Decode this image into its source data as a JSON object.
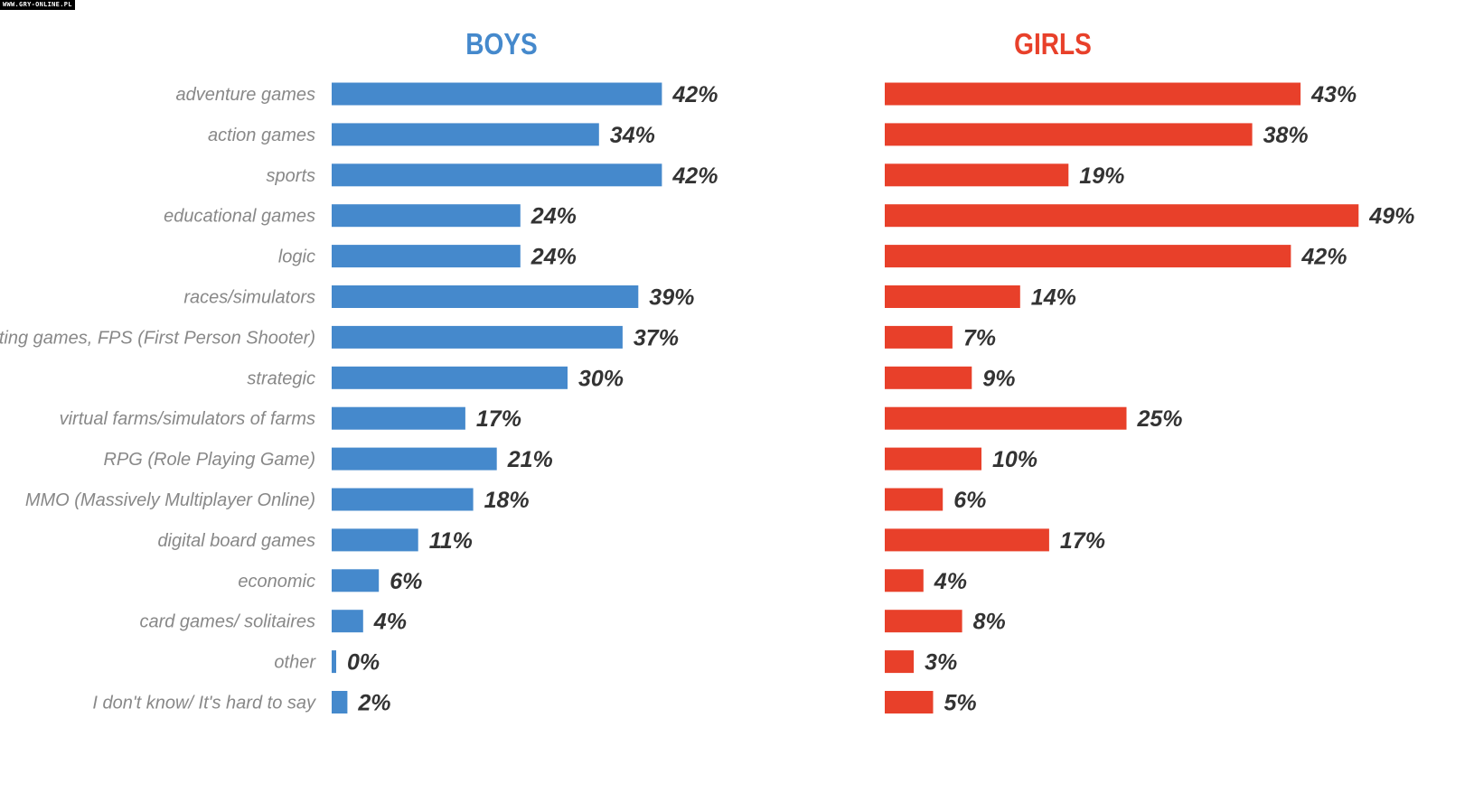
{
  "watermark": "WWW.GRY-ONLINE.PL",
  "colors": {
    "boys": "#4589cc",
    "girls": "#e8402a",
    "label": "#888888",
    "value": "#333333"
  },
  "chart_data": {
    "type": "bar",
    "orientation": "horizontal",
    "title": "",
    "categories": [
      "adventure games",
      "action games",
      "sports",
      "educational games",
      "logic",
      "races/simulators",
      "shooting games, FPS (First Person Shooter)",
      "strategic",
      "virtual farms/simulators of farms",
      "RPG (Role Playing Game)",
      "MMO (Massively Multiplayer Online)",
      "digital board games",
      "economic",
      "card games/ solitaires",
      "other",
      "I don't know/ It's hard to say"
    ],
    "series": [
      {
        "name": "BOYS",
        "values": [
          42,
          34,
          42,
          24,
          24,
          39,
          37,
          30,
          17,
          21,
          18,
          11,
          6,
          4,
          0,
          2
        ]
      },
      {
        "name": "GIRLS",
        "values": [
          43,
          38,
          19,
          49,
          42,
          14,
          7,
          9,
          25,
          10,
          6,
          17,
          4,
          8,
          3,
          5
        ]
      }
    ],
    "value_suffix": "%",
    "xlabel": "",
    "ylabel": "",
    "grid": false,
    "legend": "none"
  }
}
